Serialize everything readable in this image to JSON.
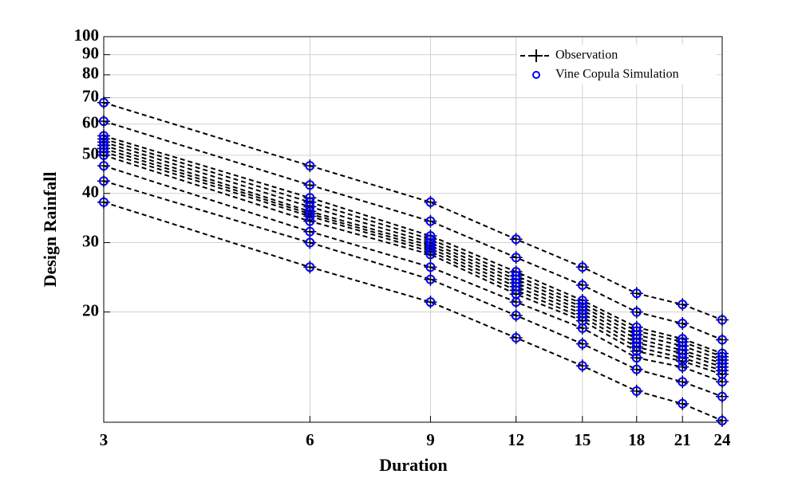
{
  "chart_data": {
    "type": "line",
    "xlabel": "Duration",
    "ylabel": "Design Rainfall",
    "log_x": true,
    "log_y": true,
    "grid": true,
    "legend_position": "upper right",
    "x": [
      3,
      6,
      9,
      12,
      15,
      18,
      21,
      24
    ],
    "xlim": [
      3,
      24
    ],
    "xticks": [
      3,
      6,
      9,
      12,
      15,
      18,
      21,
      24
    ],
    "ylim": [
      10.5,
      100
    ],
    "yticks": [
      20,
      30,
      40,
      50,
      60,
      70,
      80,
      90,
      100
    ],
    "legend": [
      {
        "label": "Observation",
        "color": "#000000"
      },
      {
        "label": "Vine Copula Simulation",
        "color": "#0000ff"
      }
    ],
    "series": [
      {
        "values": [
          68,
          47,
          38,
          30.6,
          26,
          22.3,
          20.9,
          19.1
        ]
      },
      {
        "values": [
          61,
          42,
          34,
          27.5,
          23.4,
          20,
          18.7,
          17
        ]
      },
      {
        "values": [
          56,
          39,
          31.2,
          25.3,
          21.4,
          18.3,
          17.1,
          15.7
        ]
      },
      {
        "values": [
          55,
          38,
          30.6,
          24.7,
          21,
          17.9,
          16.8,
          15.4
        ]
      },
      {
        "values": [
          54,
          37,
          30,
          24.2,
          20.6,
          17.5,
          16.4,
          15.1
        ]
      },
      {
        "values": [
          53,
          36,
          29.5,
          23.7,
          20.2,
          17.1,
          16,
          14.8
        ]
      },
      {
        "values": [
          52,
          35.5,
          29,
          23.2,
          19.8,
          16.7,
          15.7,
          14.5
        ]
      },
      {
        "values": [
          51,
          35,
          28.5,
          22.7,
          19.4,
          16.3,
          15.3,
          14.2
        ]
      },
      {
        "values": [
          50,
          34,
          28,
          22.2,
          19,
          15.9,
          15,
          13.9
        ]
      },
      {
        "values": [
          47,
          32,
          26,
          21.2,
          18.2,
          15.3,
          14.5,
          13.3
        ]
      },
      {
        "values": [
          43,
          30,
          24.2,
          19.6,
          16.6,
          14.3,
          13.3,
          12.2
        ]
      },
      {
        "values": [
          38,
          26,
          21.2,
          17.2,
          14.6,
          12.6,
          11.7,
          10.6
        ]
      }
    ]
  }
}
